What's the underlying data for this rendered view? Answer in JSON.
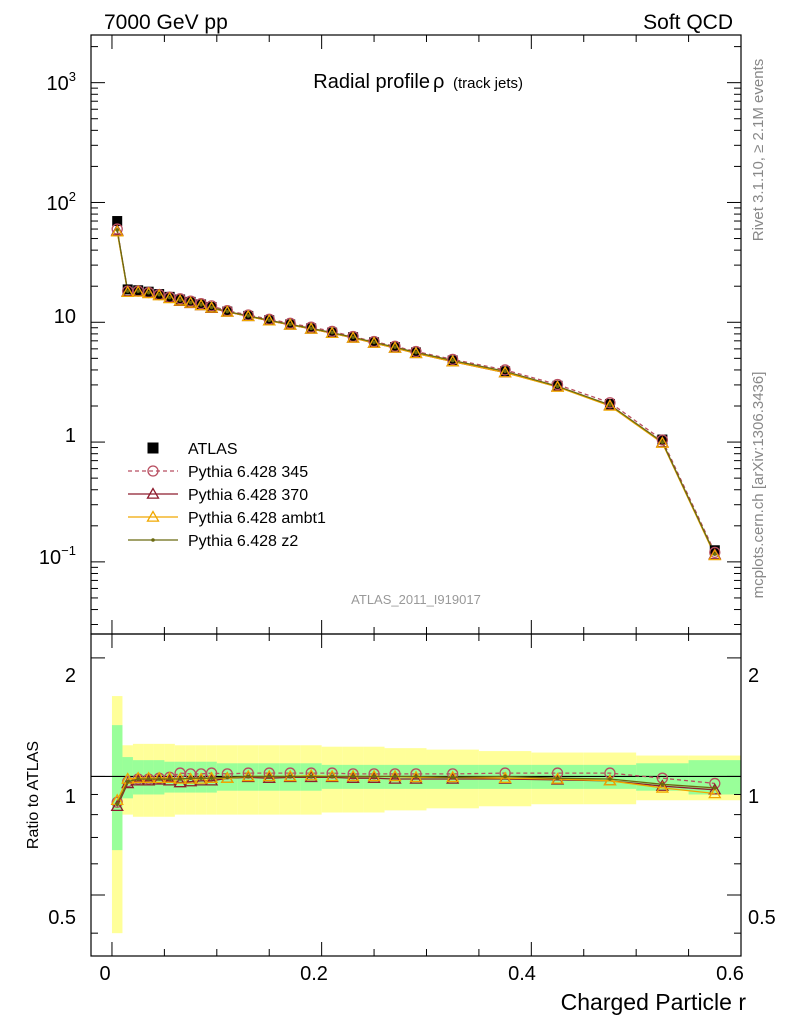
{
  "header": {
    "left": "7000 GeV pp",
    "right": "Soft QCD"
  },
  "side": {
    "rivet": "Rivet 3.1.10, ≥ 2.1M events",
    "mcplots": "mcplots.cern.ch [arXiv:1306.3436]"
  },
  "chart_data": {
    "type": "scatter",
    "title_main": "Radial profile",
    "title_symbol": "ρ",
    "title_sub": "(track jets)",
    "analysis_tag": "ATLAS_2011_I919017",
    "xlabel": "Charged Particle r",
    "ratio_ylabel": "Ratio to ATLAS",
    "xlim": [
      -0.02,
      0.6
    ],
    "ylim_main": [
      0.025,
      2500
    ],
    "ylim_ratio": [
      0.35,
      2.3
    ],
    "yscale_main": "log",
    "yscale_ratio": "log",
    "x_ticks": [
      "0",
      "0.2",
      "0.4",
      "0.6"
    ],
    "main_y_ticks": [
      "10⁻¹",
      "1",
      "10",
      "10²",
      "10³"
    ],
    "ratio_y_ticks": [
      "0.5",
      "1",
      "2"
    ],
    "legend_position": "lower-left",
    "x": [
      0.005,
      0.015,
      0.025,
      0.035,
      0.045,
      0.055,
      0.065,
      0.075,
      0.085,
      0.095,
      0.11,
      0.13,
      0.15,
      0.17,
      0.19,
      0.21,
      0.23,
      0.25,
      0.27,
      0.29,
      0.325,
      0.375,
      0.425,
      0.475,
      0.525,
      0.575
    ],
    "series": [
      {
        "name": "ATLAS",
        "color": "#000000",
        "marker": "square",
        "values": [
          70,
          18.8,
          18.5,
          18.0,
          17.2,
          16.3,
          15.5,
          14.8,
          14.1,
          13.4,
          12.3,
          11.3,
          10.4,
          9.6,
          8.9,
          8.2,
          7.5,
          6.8,
          6.2,
          5.6,
          4.8,
          3.9,
          2.95,
          2.08,
          1.05,
          0.125
        ],
        "ratio_band_inner": [
          0.35,
          0.12,
          0.1,
          0.1,
          0.1,
          0.09,
          0.09,
          0.09,
          0.09,
          0.09,
          0.08,
          0.08,
          0.08,
          0.08,
          0.08,
          0.07,
          0.07,
          0.07,
          0.07,
          0.07,
          0.07,
          0.07,
          0.07,
          0.07,
          0.08,
          0.1
        ],
        "ratio_band_outer": [
          0.6,
          0.2,
          0.21,
          0.21,
          0.21,
          0.21,
          0.2,
          0.2,
          0.2,
          0.2,
          0.2,
          0.2,
          0.2,
          0.2,
          0.2,
          0.19,
          0.19,
          0.19,
          0.18,
          0.18,
          0.17,
          0.16,
          0.15,
          0.15,
          0.13,
          0.13
        ]
      },
      {
        "name": "Pythia 6.428 345",
        "color": "#b84e60",
        "marker": "circle",
        "dashed": true,
        "values": [
          60,
          18.2,
          18.2,
          17.7,
          17.0,
          16.2,
          15.7,
          15.0,
          14.3,
          13.7,
          12.5,
          11.5,
          10.6,
          9.8,
          9.1,
          8.4,
          7.6,
          6.9,
          6.3,
          5.7,
          4.9,
          4.0,
          3.02,
          2.13,
          1.04,
          0.12
        ],
        "ratio": [
          0.86,
          0.97,
          0.985,
          0.985,
          0.99,
          0.995,
          1.02,
          1.015,
          1.015,
          1.02,
          1.015,
          1.02,
          1.02,
          1.02,
          1.02,
          1.02,
          1.015,
          1.015,
          1.015,
          1.015,
          1.015,
          1.02,
          1.02,
          1.02,
          0.99,
          0.96
        ]
      },
      {
        "name": "Pythia 6.428 370",
        "color": "#8e1c2e",
        "marker": "triangle",
        "values": [
          58,
          18.0,
          18.0,
          17.5,
          16.8,
          15.9,
          15.0,
          14.4,
          13.8,
          13.1,
          12.2,
          11.2,
          10.3,
          9.5,
          8.8,
          8.1,
          7.4,
          6.7,
          6.1,
          5.5,
          4.7,
          3.8,
          2.9,
          2.02,
          0.99,
          0.115
        ],
        "ratio": [
          0.84,
          0.96,
          0.975,
          0.975,
          0.98,
          0.975,
          0.965,
          0.97,
          0.975,
          0.975,
          0.99,
          0.995,
          0.99,
          0.995,
          0.995,
          0.995,
          0.99,
          0.99,
          0.985,
          0.985,
          0.985,
          0.985,
          0.98,
          0.975,
          0.945,
          0.925
        ]
      },
      {
        "name": "Pythia 6.428 ambt1",
        "color": "#f0a800",
        "marker": "triangle",
        "values": [
          57,
          17.8,
          17.9,
          17.4,
          16.7,
          15.8,
          15.1,
          14.5,
          13.8,
          13.2,
          12.2,
          11.2,
          10.3,
          9.5,
          8.8,
          8.1,
          7.4,
          6.7,
          6.1,
          5.5,
          4.7,
          3.8,
          2.88,
          2.0,
          0.98,
          0.113
        ],
        "ratio": [
          0.87,
          0.985,
          0.99,
          0.99,
          0.99,
          0.99,
          0.985,
          0.985,
          0.985,
          0.99,
          0.99,
          1.0,
          1.0,
          1.0,
          1.005,
          1.0,
          1.0,
          1.0,
          1.0,
          0.995,
          0.995,
          0.99,
          0.985,
          0.975,
          0.935,
          0.905
        ]
      },
      {
        "name": "Pythia 6.428 z2",
        "color": "#6b6a10",
        "marker": "dot",
        "values": [
          59,
          18.2,
          18.2,
          17.7,
          17.0,
          16.1,
          15.3,
          14.6,
          14.0,
          13.3,
          12.3,
          11.3,
          10.4,
          9.6,
          8.9,
          8.2,
          7.5,
          6.8,
          6.2,
          5.6,
          4.8,
          3.9,
          2.92,
          2.04,
          1.0,
          0.116
        ],
        "ratio": [
          0.85,
          0.97,
          0.985,
          0.985,
          0.985,
          0.985,
          0.985,
          0.99,
          0.99,
          0.99,
          0.995,
          1.0,
          1.0,
          1.0,
          1.0,
          1.0,
          1.0,
          1.0,
          1.0,
          1.0,
          0.995,
          1.0,
          0.99,
          0.985,
          0.955,
          0.935
        ]
      }
    ]
  }
}
